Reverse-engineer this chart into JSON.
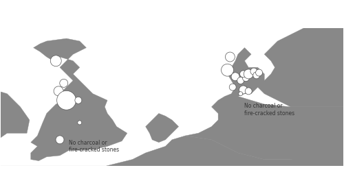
{
  "figsize": [
    5.0,
    2.83
  ],
  "dpi": 100,
  "background_color": "#ffffff",
  "circle_facecolor": "#ffffff",
  "circle_edgecolor": "#555555",
  "circle_linewidth": 0.5,
  "annotation_color": "#333333",
  "annotation_fontsize": 5.5,
  "border_linewidth": 0.8,
  "border_color": "#888888",
  "land_color": "#888888",
  "ocean_color": "#ffffff",
  "coastline_color": "#888888",
  "coastline_linewidth": 0.3,
  "shallow_sea_color": "#bbbbbb",
  "extent": [
    -8.0,
    18.0,
    49.5,
    60.0
  ],
  "uk_annotation": {
    "lon": -2.8,
    "lat": 51.5,
    "text": "No charcoal or\nfire-cracked stones"
  },
  "germany_annotation": {
    "lon": 10.5,
    "lat": 54.3,
    "text": "No charcoal or\nfire-cracked stones"
  },
  "circles": [
    {
      "lon": -3.8,
      "lat": 57.5,
      "r_pts": 8
    },
    {
      "lon": -3.2,
      "lat": 55.8,
      "r_pts": 6
    },
    {
      "lon": -3.6,
      "lat": 55.2,
      "r_pts": 7
    },
    {
      "lon": -3.0,
      "lat": 54.5,
      "r_pts": 14
    },
    {
      "lon": -2.1,
      "lat": 54.5,
      "r_pts": 5
    },
    {
      "lon": -2.0,
      "lat": 52.8,
      "r_pts": 3
    },
    {
      "lon": -3.5,
      "lat": 51.5,
      "r_pts": 6
    },
    {
      "lon": 9.4,
      "lat": 57.8,
      "r_pts": 7
    },
    {
      "lon": 9.2,
      "lat": 56.8,
      "r_pts": 9
    },
    {
      "lon": 9.8,
      "lat": 56.3,
      "r_pts": 6
    },
    {
      "lon": 10.2,
      "lat": 56.0,
      "r_pts": 5
    },
    {
      "lon": 10.6,
      "lat": 56.2,
      "r_pts": 5
    },
    {
      "lon": 10.4,
      "lat": 56.5,
      "r_pts": 5
    },
    {
      "lon": 10.8,
      "lat": 56.5,
      "r_pts": 7
    },
    {
      "lon": 11.2,
      "lat": 56.7,
      "r_pts": 5
    },
    {
      "lon": 11.4,
      "lat": 56.4,
      "r_pts": 5
    },
    {
      "lon": 11.6,
      "lat": 56.6,
      "r_pts": 5
    },
    {
      "lon": 9.6,
      "lat": 55.5,
      "r_pts": 5
    },
    {
      "lon": 10.4,
      "lat": 55.3,
      "r_pts": 6
    },
    {
      "lon": 10.2,
      "lat": 55.0,
      "r_pts": 3
    },
    {
      "lon": 10.8,
      "lat": 55.2,
      "r_pts": 5
    }
  ]
}
